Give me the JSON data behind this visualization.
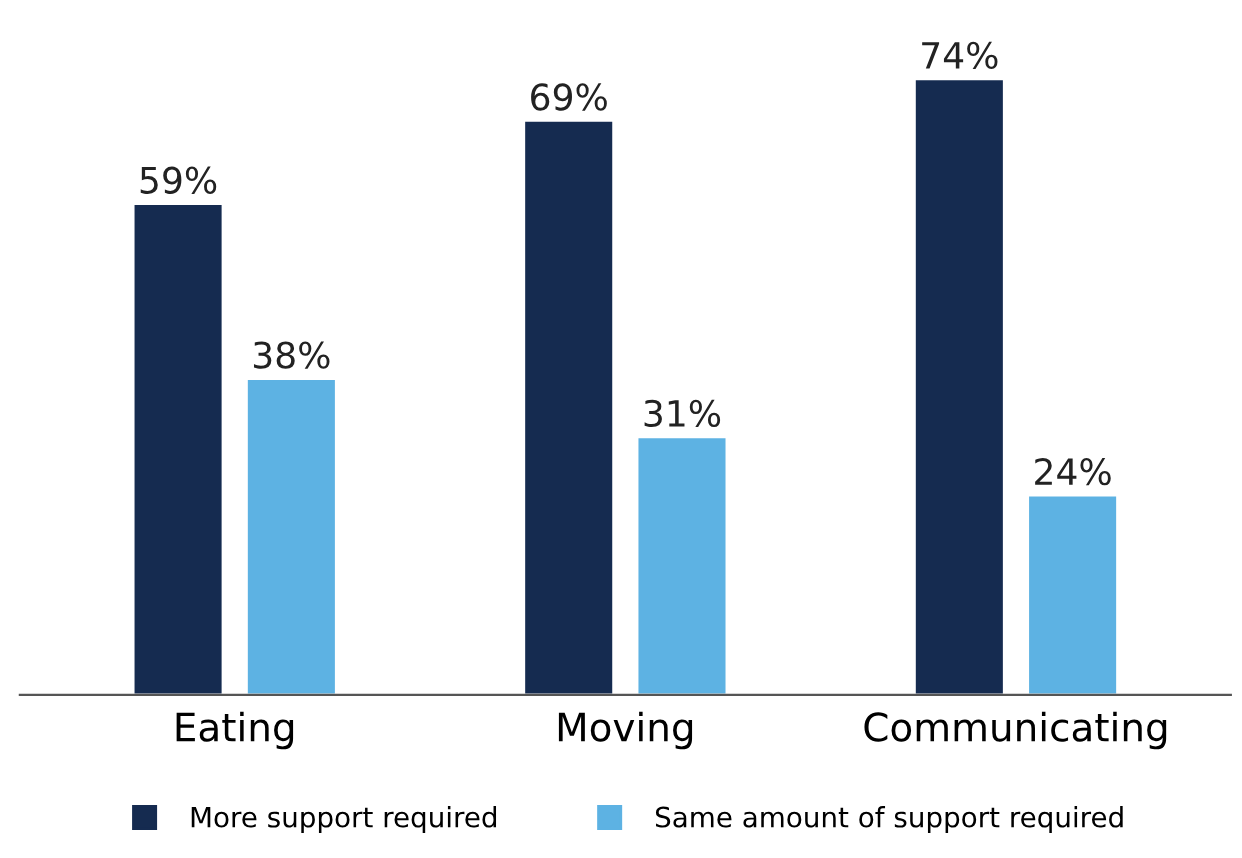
{
  "chart_data": {
    "type": "bar",
    "categories": [
      "Eating",
      "Moving",
      "Communicating"
    ],
    "series": [
      {
        "name": "More support required",
        "color": "#152b50",
        "values": [
          59,
          69,
          74
        ],
        "value_labels": [
          "59%",
          "69%",
          "74%"
        ]
      },
      {
        "name": "Same amount of support required",
        "color": "#5db2e3",
        "values": [
          38,
          31,
          24
        ],
        "value_labels": [
          "38%",
          "31%",
          "24%"
        ]
      }
    ],
    "legend": "bottom",
    "grid": false
  }
}
